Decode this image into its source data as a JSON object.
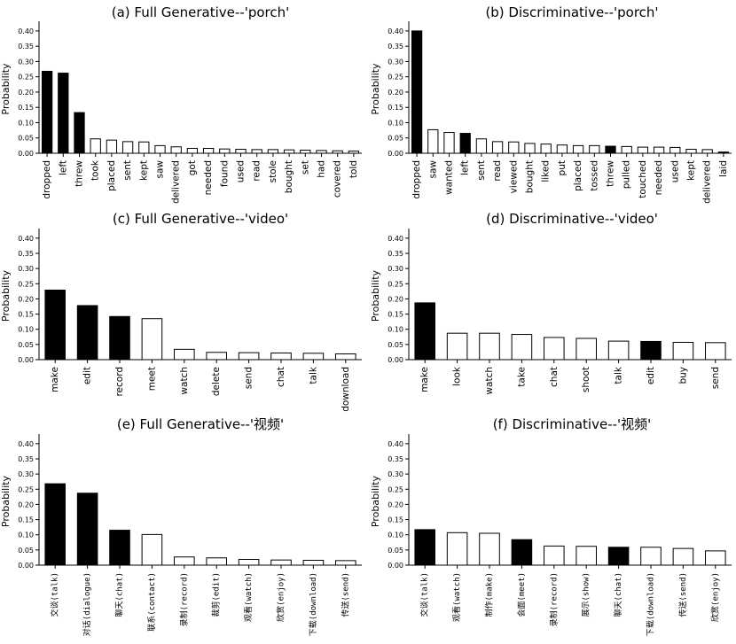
{
  "figure": {
    "colors": {
      "highlight": "#000000",
      "normal": "#ffffff",
      "edge": "#000000"
    }
  },
  "chart_data": [
    {
      "type": "bar",
      "title": "(a) Full Generative--'porch'",
      "ylabel": "Probability",
      "ylim": [
        0,
        0.42
      ],
      "yticks": [
        "0.00",
        "0.05",
        "0.10",
        "0.15",
        "0.20",
        "0.25",
        "0.30",
        "0.35",
        "0.40"
      ],
      "categories": [
        "dropped",
        "left",
        "threw",
        "took",
        "placed",
        "sent",
        "kept",
        "saw",
        "delivered",
        "got",
        "needed",
        "found",
        "used",
        "read",
        "stole",
        "bought",
        "set",
        "had",
        "covered",
        "told"
      ],
      "values": [
        0.268,
        0.262,
        0.133,
        0.047,
        0.043,
        0.038,
        0.037,
        0.025,
        0.021,
        0.016,
        0.016,
        0.014,
        0.013,
        0.012,
        0.012,
        0.011,
        0.01,
        0.009,
        0.008,
        0.007
      ],
      "highlighted": [
        true,
        true,
        true,
        false,
        false,
        false,
        false,
        false,
        false,
        false,
        false,
        false,
        false,
        false,
        false,
        false,
        false,
        false,
        false,
        false
      ]
    },
    {
      "type": "bar",
      "title": "(b) Discriminative--'porch'",
      "ylabel": "Probability",
      "ylim": [
        0,
        0.42
      ],
      "yticks": [
        "0.00",
        "0.05",
        "0.10",
        "0.15",
        "0.20",
        "0.25",
        "0.30",
        "0.35",
        "0.40"
      ],
      "categories": [
        "dropped",
        "saw",
        "wanted",
        "left",
        "sent",
        "read",
        "viewed",
        "bought",
        "liked",
        "put",
        "placed",
        "tossed",
        "threw",
        "pulled",
        "touched",
        "needed",
        "used",
        "kept",
        "delivered",
        "laid"
      ],
      "values": [
        0.4,
        0.077,
        0.068,
        0.065,
        0.047,
        0.038,
        0.037,
        0.032,
        0.03,
        0.027,
        0.025,
        0.025,
        0.023,
        0.022,
        0.02,
        0.02,
        0.019,
        0.013,
        0.012,
        0.004
      ],
      "highlighted": [
        true,
        false,
        false,
        true,
        false,
        false,
        false,
        false,
        false,
        false,
        false,
        false,
        true,
        false,
        false,
        false,
        false,
        false,
        false,
        true
      ]
    },
    {
      "type": "bar",
      "title": "(c) Full Generative--'video'",
      "ylabel": "Probability",
      "ylim": [
        0,
        0.42
      ],
      "yticks": [
        "0.00",
        "0.05",
        "0.10",
        "0.15",
        "0.20",
        "0.25",
        "0.30",
        "0.35",
        "0.40"
      ],
      "categories": [
        "make",
        "edit",
        "record",
        "meet",
        "watch",
        "delete",
        "send",
        "chat",
        "talk",
        "download"
      ],
      "values": [
        0.229,
        0.178,
        0.142,
        0.135,
        0.034,
        0.024,
        0.023,
        0.022,
        0.021,
        0.019
      ],
      "highlighted": [
        true,
        true,
        true,
        false,
        false,
        false,
        false,
        false,
        false,
        false
      ]
    },
    {
      "type": "bar",
      "title": "(d) Discriminative--'video'",
      "ylabel": "Probability",
      "ylim": [
        0,
        0.42
      ],
      "yticks": [
        "0.00",
        "0.05",
        "0.10",
        "0.15",
        "0.20",
        "0.25",
        "0.30",
        "0.35",
        "0.40"
      ],
      "categories": [
        "make",
        "look",
        "watch",
        "take",
        "chat",
        "shoot",
        "talk",
        "edit",
        "buy",
        "send"
      ],
      "values": [
        0.187,
        0.087,
        0.087,
        0.083,
        0.073,
        0.07,
        0.061,
        0.06,
        0.057,
        0.056
      ],
      "highlighted": [
        true,
        false,
        false,
        false,
        false,
        false,
        false,
        true,
        false,
        false
      ]
    },
    {
      "type": "bar",
      "title": "(e) Full Generative--'视频'",
      "ylabel": "Probability",
      "ylim": [
        0,
        0.42
      ],
      "yticks": [
        "0.00",
        "0.05",
        "0.10",
        "0.15",
        "0.20",
        "0.25",
        "0.30",
        "0.35",
        "0.40"
      ],
      "categories": [
        "交谈(talk)",
        "对话(dialogue)",
        "聊天(chat)",
        "联系(contact)",
        "录制(record)",
        "裁剪(edit)",
        "观看(watch)",
        "欣赏(enjoy)",
        "下载(download)",
        "传送(send)"
      ],
      "values": [
        0.268,
        0.237,
        0.115,
        0.101,
        0.027,
        0.024,
        0.019,
        0.017,
        0.016,
        0.015
      ],
      "highlighted": [
        true,
        true,
        true,
        false,
        false,
        false,
        false,
        false,
        false,
        false
      ]
    },
    {
      "type": "bar",
      "title": "(f) Discriminative--'视频'",
      "ylabel": "Probability",
      "ylim": [
        0,
        0.42
      ],
      "yticks": [
        "0.00",
        "0.05",
        "0.10",
        "0.15",
        "0.20",
        "0.25",
        "0.30",
        "0.35",
        "0.40"
      ],
      "categories": [
        "交谈(talk)",
        "观看(watch)",
        "制作(make)",
        "会面(meet)",
        "录制(record)",
        "展示(show)",
        "聊天(chat)",
        "下载(download)",
        "传送(send)",
        "欣赏(enjoy)"
      ],
      "values": [
        0.117,
        0.107,
        0.105,
        0.084,
        0.063,
        0.062,
        0.059,
        0.059,
        0.055,
        0.047
      ],
      "highlighted": [
        true,
        false,
        false,
        true,
        false,
        false,
        true,
        false,
        false,
        false
      ]
    }
  ]
}
